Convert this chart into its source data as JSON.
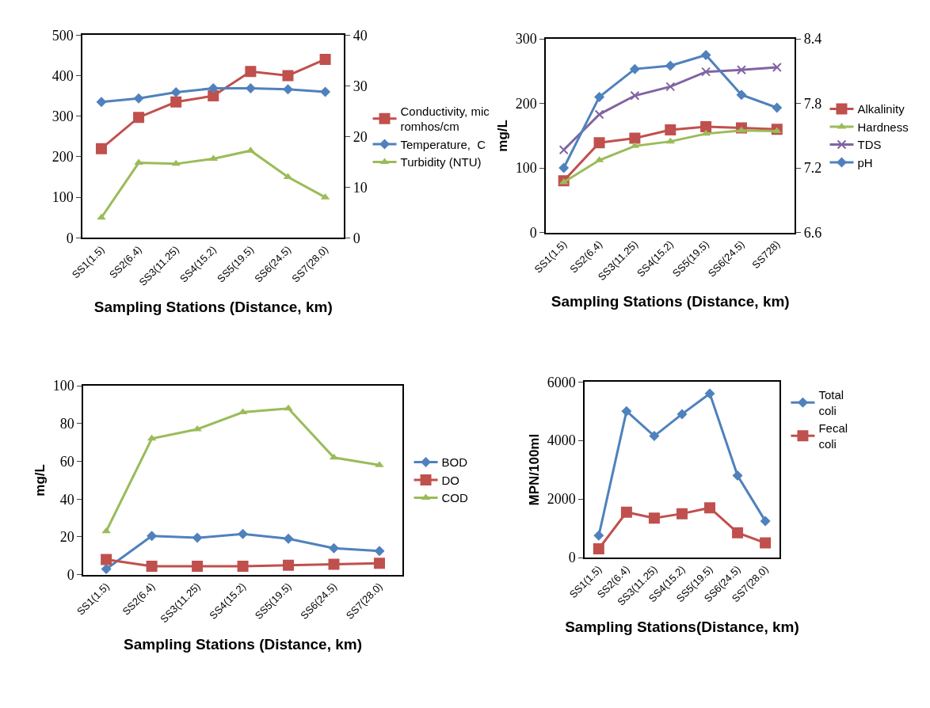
{
  "chart_data": [
    {
      "type": "line",
      "xlabel": "Sampling Stations (Distance, km)",
      "categories": [
        "SS1(1.5)",
        "SS2(6.4)",
        "SS3(11.25)",
        "SS4(15.2)",
        "SS5(19.5)",
        "SS6(24.5)",
        "SS7(28.0)"
      ],
      "ylim": [
        0,
        500
      ],
      "yticks": [
        0,
        100,
        200,
        300,
        400,
        500
      ],
      "y2lim": [
        0,
        40
      ],
      "y2ticks": [
        0,
        10,
        20,
        30,
        40
      ],
      "legend": "right",
      "series": [
        {
          "name": "Conductivity, mic romhos/cm",
          "color": "#c0504d",
          "marker": "square",
          "values": [
            220,
            297,
            335,
            350,
            410,
            400,
            440
          ]
        },
        {
          "name": "Temperature,  C",
          "color": "#4f81bd",
          "marker": "diamond",
          "axis": "y2",
          "values": [
            26.8,
            27.5,
            28.7,
            29.5,
            29.5,
            29.3,
            28.8
          ]
        },
        {
          "name": "Turbidity (NTU)",
          "color": "#9bbb59",
          "marker": "triangle",
          "axis": "y2",
          "values": [
            4,
            14.8,
            14.6,
            15.6,
            17.2,
            12,
            8
          ]
        }
      ]
    },
    {
      "type": "line",
      "xlabel": "Sampling Stations (Distance, km)",
      "ylabel": "mg/L",
      "categories": [
        "SS1(1.5)",
        "SS2(6.4)",
        "SS3(11.25)",
        "SS4(15.2)",
        "SS5(19.5)",
        "SS6(24.5)",
        "SS728)"
      ],
      "ylim": [
        0,
        300
      ],
      "yticks": [
        0,
        100,
        200,
        300
      ],
      "y2lim": [
        6.6,
        8.4
      ],
      "y2ticks": [
        6.6,
        7.2,
        7.8,
        8.4
      ],
      "legend": "right",
      "series": [
        {
          "name": "Alkalinity",
          "color": "#c0504d",
          "marker": "square",
          "values": [
            80,
            139,
            146,
            159,
            164,
            162,
            160
          ]
        },
        {
          "name": "Hardness",
          "color": "#9bbb59",
          "marker": "triangle",
          "values": [
            78,
            112,
            134,
            141,
            153,
            158,
            157
          ]
        },
        {
          "name": "TDS",
          "color": "#8064a2",
          "marker": "cross",
          "values": [
            128,
            183,
            212,
            226,
            249,
            252,
            256
          ]
        },
        {
          "name": "pH",
          "color": "#4f81bd",
          "marker": "diamond",
          "axis": "y2",
          "values": [
            7.2,
            7.86,
            8.12,
            8.15,
            8.25,
            7.88,
            7.76
          ]
        }
      ]
    },
    {
      "type": "line",
      "xlabel": "Sampling Stations (Distance, km)",
      "ylabel": "mg/L",
      "categories": [
        "SS1(1.5)",
        "SS2(6.4)",
        "SS3(11.25)",
        "SS4(15.2)",
        "SS5(19.5)",
        "SS6(24.5)",
        "SS7(28.0)"
      ],
      "ylim": [
        0,
        100
      ],
      "yticks": [
        0,
        20,
        40,
        60,
        80,
        100
      ],
      "legend": "right",
      "series": [
        {
          "name": "BOD",
          "color": "#4f81bd",
          "marker": "diamond",
          "values": [
            3,
            20.5,
            19.5,
            21.5,
            19,
            14,
            12.5
          ]
        },
        {
          "name": "DO",
          "color": "#c0504d",
          "marker": "square",
          "values": [
            8,
            4.5,
            4.5,
            4.5,
            5,
            5.5,
            6
          ]
        },
        {
          "name": "COD",
          "color": "#9bbb59",
          "marker": "triangle",
          "values": [
            23,
            72,
            77,
            86,
            88,
            62,
            58
          ]
        }
      ]
    },
    {
      "type": "line",
      "xlabel": "Sampling Stations(Distance, km)",
      "ylabel": "MPN/100ml",
      "categories": [
        "SS1(1.5)",
        "SS2(6.4)",
        "SS3(11.25)",
        "SS4(15.2)",
        "SS5(19.5)",
        "SS6(24.5)",
        "SS7(28.0)"
      ],
      "ylim": [
        0,
        6000
      ],
      "yticks": [
        0,
        2000,
        4000,
        6000
      ],
      "legend": "top right",
      "series": [
        {
          "name": "Total coli",
          "color": "#4f81bd",
          "marker": "diamond",
          "values": [
            750,
            5000,
            4150,
            4900,
            5600,
            2800,
            1250
          ]
        },
        {
          "name": "Fecal coli",
          "color": "#c0504d",
          "marker": "square",
          "values": [
            300,
            1550,
            1350,
            1500,
            1700,
            850,
            500
          ]
        }
      ]
    }
  ]
}
